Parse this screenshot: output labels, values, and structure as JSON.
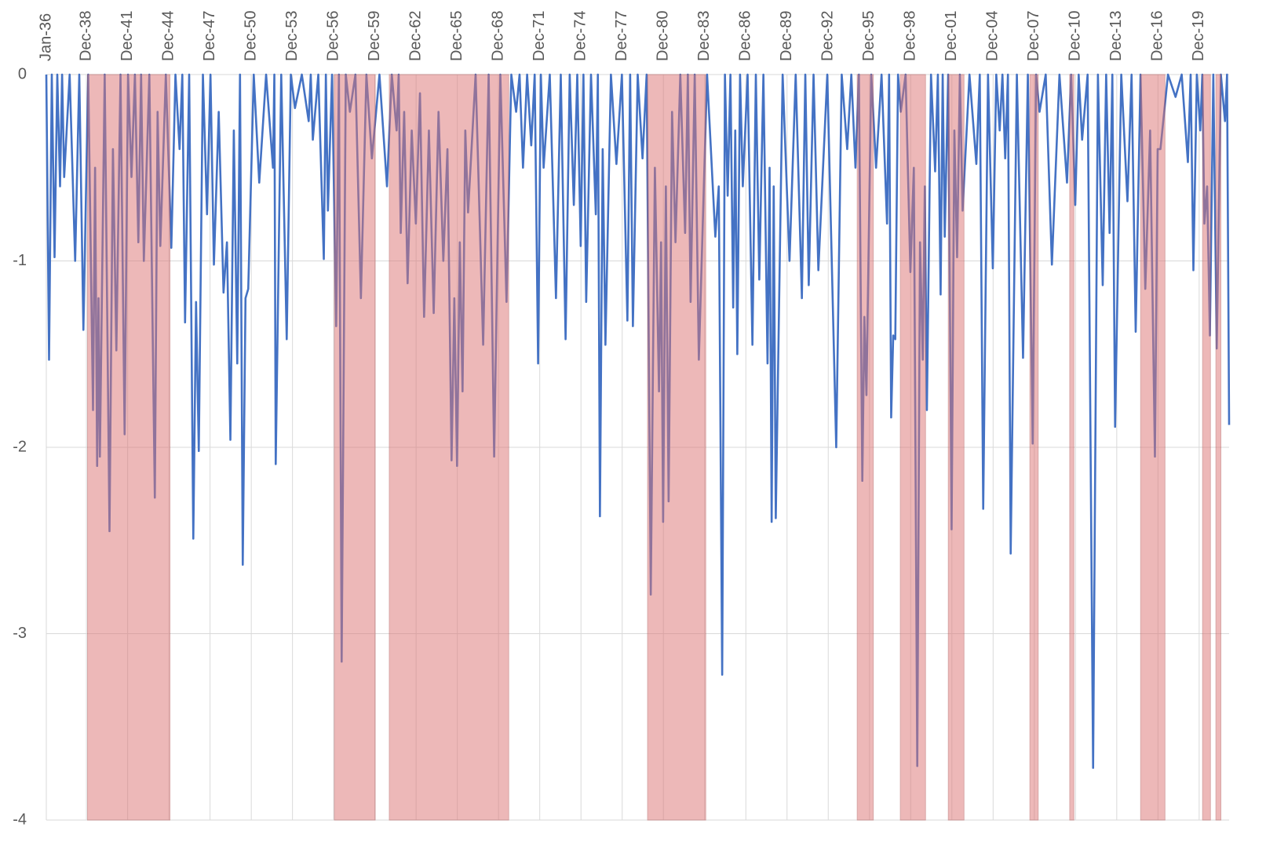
{
  "chart_data": {
    "type": "line",
    "color": "#4472c4",
    "band_color": "#dc7474",
    "grid": true,
    "xlim": [
      1936,
      2022.1
    ],
    "ylim": [
      -4,
      0
    ],
    "yticks": [
      0,
      -1,
      -2,
      -3,
      -4
    ],
    "xticks": [
      {
        "value": 1936,
        "label": "Jan-36"
      },
      {
        "value": 1938.92,
        "label": "Dec-38"
      },
      {
        "value": 1941.92,
        "label": "Dec-41"
      },
      {
        "value": 1944.92,
        "label": "Dec-44"
      },
      {
        "value": 1947.92,
        "label": "Dec-47"
      },
      {
        "value": 1950.92,
        "label": "Dec-50"
      },
      {
        "value": 1953.92,
        "label": "Dec-53"
      },
      {
        "value": 1956.92,
        "label": "Dec-56"
      },
      {
        "value": 1959.92,
        "label": "Dec-59"
      },
      {
        "value": 1962.92,
        "label": "Dec-62"
      },
      {
        "value": 1965.92,
        "label": "Dec-65"
      },
      {
        "value": 1968.92,
        "label": "Dec-68"
      },
      {
        "value": 1971.92,
        "label": "Dec-71"
      },
      {
        "value": 1974.92,
        "label": "Dec-74"
      },
      {
        "value": 1977.92,
        "label": "Dec-77"
      },
      {
        "value": 1980.92,
        "label": "Dec-80"
      },
      {
        "value": 1983.92,
        "label": "Dec-83"
      },
      {
        "value": 1986.92,
        "label": "Dec-86"
      },
      {
        "value": 1989.92,
        "label": "Dec-89"
      },
      {
        "value": 1992.92,
        "label": "Dec-92"
      },
      {
        "value": 1995.92,
        "label": "Dec-95"
      },
      {
        "value": 1998.92,
        "label": "Dec-98"
      },
      {
        "value": 2001.92,
        "label": "Dec-01"
      },
      {
        "value": 2004.92,
        "label": "Dec-04"
      },
      {
        "value": 2007.92,
        "label": "Dec-07"
      },
      {
        "value": 2010.92,
        "label": "Dec-10"
      },
      {
        "value": 2013.92,
        "label": "Dec-13"
      },
      {
        "value": 2016.92,
        "label": "Dec-16"
      },
      {
        "value": 2019.92,
        "label": "Dec-19"
      }
    ],
    "bands": [
      [
        1939.0,
        1945.0
      ],
      [
        1956.97,
        1959.94
      ],
      [
        1960.97,
        1969.66
      ],
      [
        1979.77,
        1984.0
      ],
      [
        1995.03,
        1996.2
      ],
      [
        1998.17,
        2000.0
      ],
      [
        2001.66,
        2002.8
      ],
      [
        2007.6,
        2008.2
      ],
      [
        2010.5,
        2010.8
      ],
      [
        2015.66,
        2017.43
      ],
      [
        2020.17,
        2020.74
      ],
      [
        2021.14,
        2021.5
      ]
    ],
    "x": [
      1936.0,
      1936.2,
      1936.4,
      1936.6,
      1936.8,
      1937.0,
      1937.15,
      1937.3,
      1937.7,
      1938.1,
      1938.4,
      1938.7,
      1939.05,
      1939.4,
      1939.55,
      1939.7,
      1939.8,
      1939.9,
      1940.25,
      1940.6,
      1940.85,
      1941.1,
      1941.4,
      1941.7,
      1941.95,
      1942.2,
      1942.45,
      1942.7,
      1942.9,
      1943.1,
      1943.5,
      1943.9,
      1944.1,
      1944.3,
      1944.7,
      1945.1,
      1945.4,
      1945.7,
      1945.9,
      1946.1,
      1946.4,
      1946.7,
      1946.9,
      1947.1,
      1947.4,
      1947.7,
      1947.95,
      1948.2,
      1948.55,
      1948.9,
      1949.15,
      1949.4,
      1949.65,
      1949.9,
      1950.1,
      1950.3,
      1950.5,
      1950.7,
      1951.1,
      1951.5,
      1952.0,
      1952.5,
      1952.6,
      1952.7,
      1953.1,
      1953.5,
      1953.8,
      1954.1,
      1954.6,
      1955.1,
      1955.25,
      1955.4,
      1955.8,
      1956.2,
      1956.35,
      1956.5,
      1956.8,
      1957.1,
      1957.3,
      1957.5,
      1957.8,
      1958.1,
      1958.5,
      1958.9,
      1959.3,
      1959.7,
      1960.25,
      1960.8,
      1961.15,
      1961.5,
      1961.65,
      1961.8,
      1962.05,
      1962.3,
      1962.6,
      1962.9,
      1963.2,
      1963.5,
      1963.85,
      1964.2,
      1964.55,
      1964.9,
      1965.2,
      1965.5,
      1965.7,
      1965.9,
      1966.1,
      1966.3,
      1966.5,
      1966.7,
      1967.25,
      1967.8,
      1968.2,
      1968.6,
      1969.05,
      1969.5,
      1969.85,
      1970.2,
      1970.45,
      1970.7,
      1971.0,
      1971.3,
      1971.55,
      1971.8,
      1972.0,
      1972.2,
      1972.65,
      1973.1,
      1973.45,
      1973.8,
      1974.1,
      1974.4,
      1974.65,
      1974.9,
      1975.1,
      1975.3,
      1975.65,
      1976.0,
      1976.15,
      1976.3,
      1976.5,
      1976.7,
      1977.1,
      1977.5,
      1977.9,
      1978.3,
      1978.5,
      1978.7,
      1979.05,
      1979.4,
      1979.7,
      1980.0,
      1980.3,
      1980.6,
      1980.75,
      1980.9,
      1981.1,
      1981.3,
      1981.55,
      1981.8,
      1982.15,
      1982.5,
      1982.7,
      1982.9,
      1983.2,
      1983.5,
      1984.1,
      1984.7,
      1984.95,
      1985.2,
      1985.4,
      1985.6,
      1985.8,
      1986.0,
      1986.15,
      1986.3,
      1986.5,
      1986.7,
      1987.05,
      1987.4,
      1987.65,
      1987.9,
      1988.2,
      1988.5,
      1988.65,
      1988.8,
      1988.95,
      1989.1,
      1989.6,
      1990.1,
      1990.55,
      1991.0,
      1991.25,
      1991.5,
      1991.85,
      1992.2,
      1992.85,
      1993.5,
      1993.9,
      1994.3,
      1994.6,
      1994.9,
      1995.15,
      1995.4,
      1995.55,
      1995.7,
      1996.05,
      1996.4,
      1996.8,
      1997.2,
      1997.35,
      1997.5,
      1997.65,
      1997.8,
      1998.0,
      1998.2,
      1998.55,
      1998.9,
      1999.15,
      1999.4,
      1999.6,
      1999.8,
      1999.95,
      2000.1,
      2000.4,
      2000.7,
      2000.9,
      2001.1,
      2001.25,
      2001.4,
      2001.65,
      2001.9,
      2002.1,
      2002.3,
      2002.5,
      2002.7,
      2003.2,
      2003.7,
      2003.95,
      2004.2,
      2004.55,
      2004.9,
      2005.15,
      2005.4,
      2005.6,
      2005.8,
      2006.0,
      2006.2,
      2006.65,
      2007.1,
      2007.45,
      2007.8,
      2008.05,
      2008.3,
      2008.75,
      2009.2,
      2009.75,
      2010.3,
      2010.6,
      2010.9,
      2011.15,
      2011.4,
      2011.8,
      2012.2,
      2012.55,
      2012.9,
      2013.15,
      2013.4,
      2013.6,
      2013.8,
      2014.25,
      2014.7,
      2015.0,
      2015.3,
      2015.65,
      2016.0,
      2016.35,
      2016.7,
      2016.9,
      2017.1,
      2017.65,
      2018.2,
      2018.65,
      2019.1,
      2019.3,
      2019.5,
      2019.75,
      2020.0,
      2020.15,
      2020.3,
      2020.5,
      2020.7,
      2020.95,
      2021.2,
      2021.5,
      2021.8,
      2021.95,
      2022.1
    ],
    "values": [
      0,
      -1.53,
      0,
      -0.98,
      0,
      -0.6,
      0,
      -0.55,
      0,
      -1.0,
      0,
      -1.37,
      0,
      -1.8,
      -0.5,
      -2.1,
      -1.2,
      -2.05,
      0,
      -2.45,
      -0.4,
      -1.48,
      0,
      -1.93,
      0,
      -0.55,
      0,
      -0.9,
      0,
      -1.0,
      0,
      -2.27,
      -0.2,
      -0.92,
      0,
      -0.93,
      0,
      -0.4,
      0,
      -1.33,
      0,
      -2.49,
      -1.22,
      -2.02,
      0,
      -0.75,
      0,
      -1.02,
      -0.2,
      -1.17,
      -0.9,
      -1.96,
      -0.3,
      -1.55,
      0,
      -2.63,
      -1.2,
      -1.15,
      0,
      -0.58,
      0,
      -0.5,
      0,
      -2.09,
      0,
      -1.42,
      0,
      -0.18,
      0,
      -0.25,
      0,
      -0.35,
      0,
      -0.99,
      0,
      -0.73,
      0,
      -1.35,
      0,
      -3.15,
      0,
      -0.2,
      0,
      -1.2,
      0,
      -0.45,
      0,
      -0.6,
      0,
      -0.3,
      0,
      -0.85,
      -0.2,
      -1.12,
      -0.3,
      -0.8,
      -0.1,
      -1.3,
      -0.3,
      -1.28,
      -0.2,
      -1.0,
      -0.4,
      -2.07,
      -1.2,
      -2.1,
      -0.9,
      -1.7,
      -0.3,
      -0.74,
      0,
      -1.45,
      0,
      -2.05,
      0,
      -1.22,
      0,
      -0.2,
      0,
      -0.5,
      0,
      -0.38,
      0,
      -1.55,
      0,
      -0.5,
      0,
      -1.2,
      0,
      -1.42,
      0,
      -0.7,
      0,
      -0.92,
      0,
      -1.22,
      0,
      -0.75,
      0,
      -2.37,
      -0.4,
      -1.45,
      0,
      -0.48,
      0,
      -1.32,
      0,
      -1.35,
      0,
      -0.45,
      0,
      -2.79,
      -0.5,
      -1.7,
      -0.9,
      -2.4,
      -0.6,
      -2.29,
      -0.2,
      -0.9,
      0,
      -0.85,
      0,
      -1.22,
      0,
      -1.53,
      0,
      -0.87,
      -0.6,
      -3.22,
      0,
      -0.65,
      0,
      -1.25,
      -0.3,
      -1.5,
      0,
      -0.6,
      0,
      -1.45,
      0,
      -1.1,
      0,
      -1.55,
      -0.5,
      -2.4,
      -0.6,
      -2.38,
      0,
      -1.0,
      0,
      -1.2,
      0,
      -1.13,
      0,
      -1.05,
      0,
      -2.0,
      0,
      -0.4,
      0,
      -0.5,
      0,
      -2.18,
      -1.3,
      -1.72,
      0,
      -0.5,
      0,
      -0.8,
      0,
      -1.84,
      -1.4,
      -1.42,
      0,
      -0.2,
      0,
      -1.06,
      -0.5,
      -3.71,
      -0.9,
      -1.53,
      -0.6,
      -1.8,
      0,
      -0.52,
      0,
      -1.18,
      0,
      -0.87,
      0,
      -2.44,
      -0.3,
      -0.98,
      0,
      -0.73,
      0,
      -0.48,
      0,
      -2.33,
      0,
      -1.04,
      0,
      -0.3,
      0,
      -0.45,
      0,
      -2.57,
      0,
      -1.52,
      0,
      -1.98,
      0,
      -0.2,
      0,
      -1.02,
      0,
      -0.58,
      0,
      -0.7,
      0,
      -0.35,
      0,
      -3.72,
      0,
      -1.13,
      0,
      -0.85,
      0,
      -1.89,
      0,
      -0.68,
      0,
      -1.38,
      0,
      -1.15,
      -0.3,
      -2.05,
      -0.4,
      -0.4,
      0,
      -0.12,
      0,
      -0.47,
      0,
      -1.05,
      0,
      -0.3,
      0,
      -0.8,
      -0.6,
      -1.4,
      0,
      -1.47,
      0,
      -0.25,
      0,
      -1.88
    ]
  }
}
